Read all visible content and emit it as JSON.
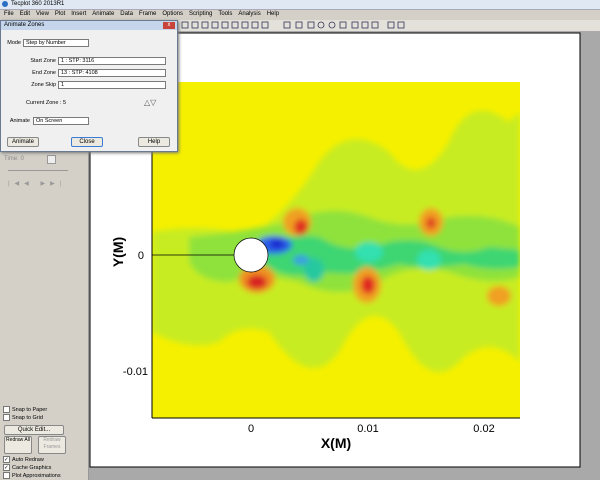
{
  "window": {
    "title": "Tecplot 360 2013R1"
  },
  "menu": [
    "File",
    "Edit",
    "View",
    "Plot",
    "Insert",
    "Animate",
    "Data",
    "Frame",
    "Options",
    "Scripting",
    "Tools",
    "Analysis",
    "Help"
  ],
  "dialog": {
    "title": "Animate Zones",
    "mode_label": "Mode",
    "mode_value": "Step by Number",
    "start_zone_label": "Start Zone",
    "start_zone_value": "1 : STP: 3116",
    "end_zone_label": "End Zone",
    "end_zone_value": "13 : STP: 4108",
    "zone_skip_label": "Zone Skip",
    "zone_skip_value": "1",
    "current_zone": "Current Zone : 5",
    "animate_label": "Animate",
    "animate_value": "On Screen",
    "buttons": [
      "Animate",
      "Close",
      "Help"
    ]
  },
  "sidebar": {
    "time": "Time: 0",
    "snap": [
      "Snap to Paper",
      "Snap to Grid"
    ],
    "quick_edit": "Quick Edit...",
    "redraw_all": "Redraw All",
    "redraw_frames": "Redraw Frames",
    "options": [
      "Auto Redraw",
      "Cache Graphics",
      "Plot Approximations"
    ]
  },
  "plot": {
    "x_label": "X(M)",
    "y_label": "Y(M)",
    "x_ticks": [
      "0",
      "0.01",
      "0.02"
    ],
    "y_ticks": [
      "0",
      "-0.01"
    ]
  }
}
